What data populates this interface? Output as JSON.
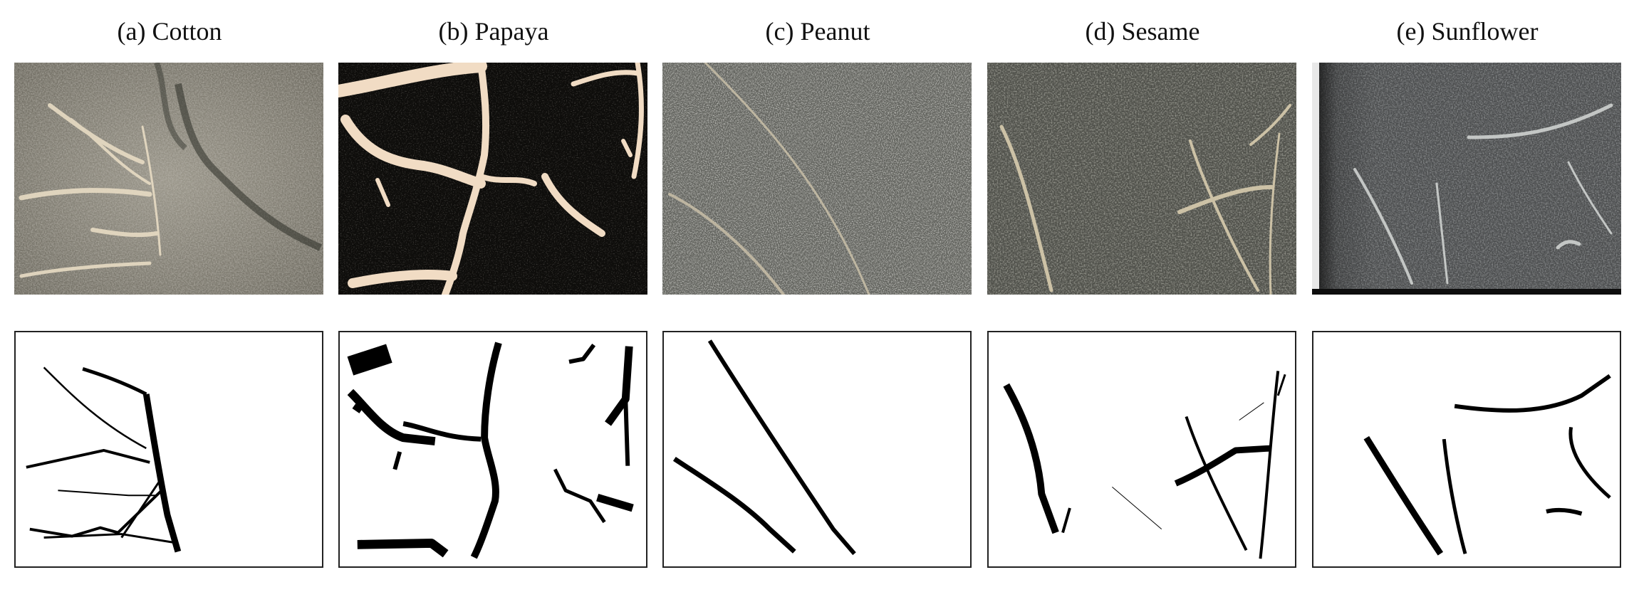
{
  "figure": {
    "panels": [
      {
        "id": "a",
        "caption": "(a) Cotton"
      },
      {
        "id": "b",
        "caption": "(b) Papaya"
      },
      {
        "id": "c",
        "caption": "(c) Peanut"
      },
      {
        "id": "d",
        "caption": "(d) Sesame"
      },
      {
        "id": "e",
        "caption": "(e) Sunflower"
      }
    ]
  }
}
